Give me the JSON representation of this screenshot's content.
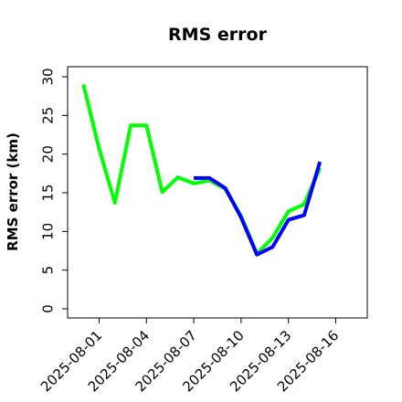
{
  "chart_data": {
    "type": "line",
    "title": "RMS error",
    "xlabel": "",
    "ylabel": "RMS error (km)",
    "ylim": [
      0,
      30
    ],
    "yticks": [
      0,
      5,
      10,
      15,
      20,
      25,
      30
    ],
    "xlim": [
      "2025-07-30",
      "2025-08-18"
    ],
    "xticks": [
      "2025-08-01",
      "2025-08-04",
      "2025-08-07",
      "2025-08-10",
      "2025-08-13",
      "2025-08-16"
    ],
    "highlight_tick": "2025-08-07",
    "highlight_color": "#228B22",
    "grid": false,
    "legend": "none",
    "series": [
      {
        "color": "#00ff00",
        "points": [
          {
            "x": "2025-07-31",
            "y": 29.0
          },
          {
            "x": "2025-08-01",
            "y": 20.7
          },
          {
            "x": "2025-08-02",
            "y": 13.7
          },
          {
            "x": "2025-08-03",
            "y": 23.7
          },
          {
            "x": "2025-08-04",
            "y": 23.7
          },
          {
            "x": "2025-08-05",
            "y": 15.1
          },
          {
            "x": "2025-08-06",
            "y": 17.0
          },
          {
            "x": "2025-08-07",
            "y": 16.2
          },
          {
            "x": "2025-08-08",
            "y": 16.6
          },
          {
            "x": "2025-08-09",
            "y": 15.5
          },
          {
            "x": "2025-08-10",
            "y": 12.0
          },
          {
            "x": "2025-08-11",
            "y": 7.1
          },
          {
            "x": "2025-08-12",
            "y": 9.2
          },
          {
            "x": "2025-08-13",
            "y": 12.6
          },
          {
            "x": "2025-08-14",
            "y": 13.5
          },
          {
            "x": "2025-08-15",
            "y": 18.2
          }
        ]
      },
      {
        "color": "#0000ff",
        "points": [
          {
            "x": "2025-08-07",
            "y": 16.9
          },
          {
            "x": "2025-08-08",
            "y": 16.9
          },
          {
            "x": "2025-08-09",
            "y": 15.6
          },
          {
            "x": "2025-08-10",
            "y": 11.8
          },
          {
            "x": "2025-08-11",
            "y": 7.0
          },
          {
            "x": "2025-08-12",
            "y": 8.0
          },
          {
            "x": "2025-08-13",
            "y": 11.5
          },
          {
            "x": "2025-08-14",
            "y": 12.1
          },
          {
            "x": "2025-08-15",
            "y": 19.0
          }
        ]
      }
    ]
  }
}
